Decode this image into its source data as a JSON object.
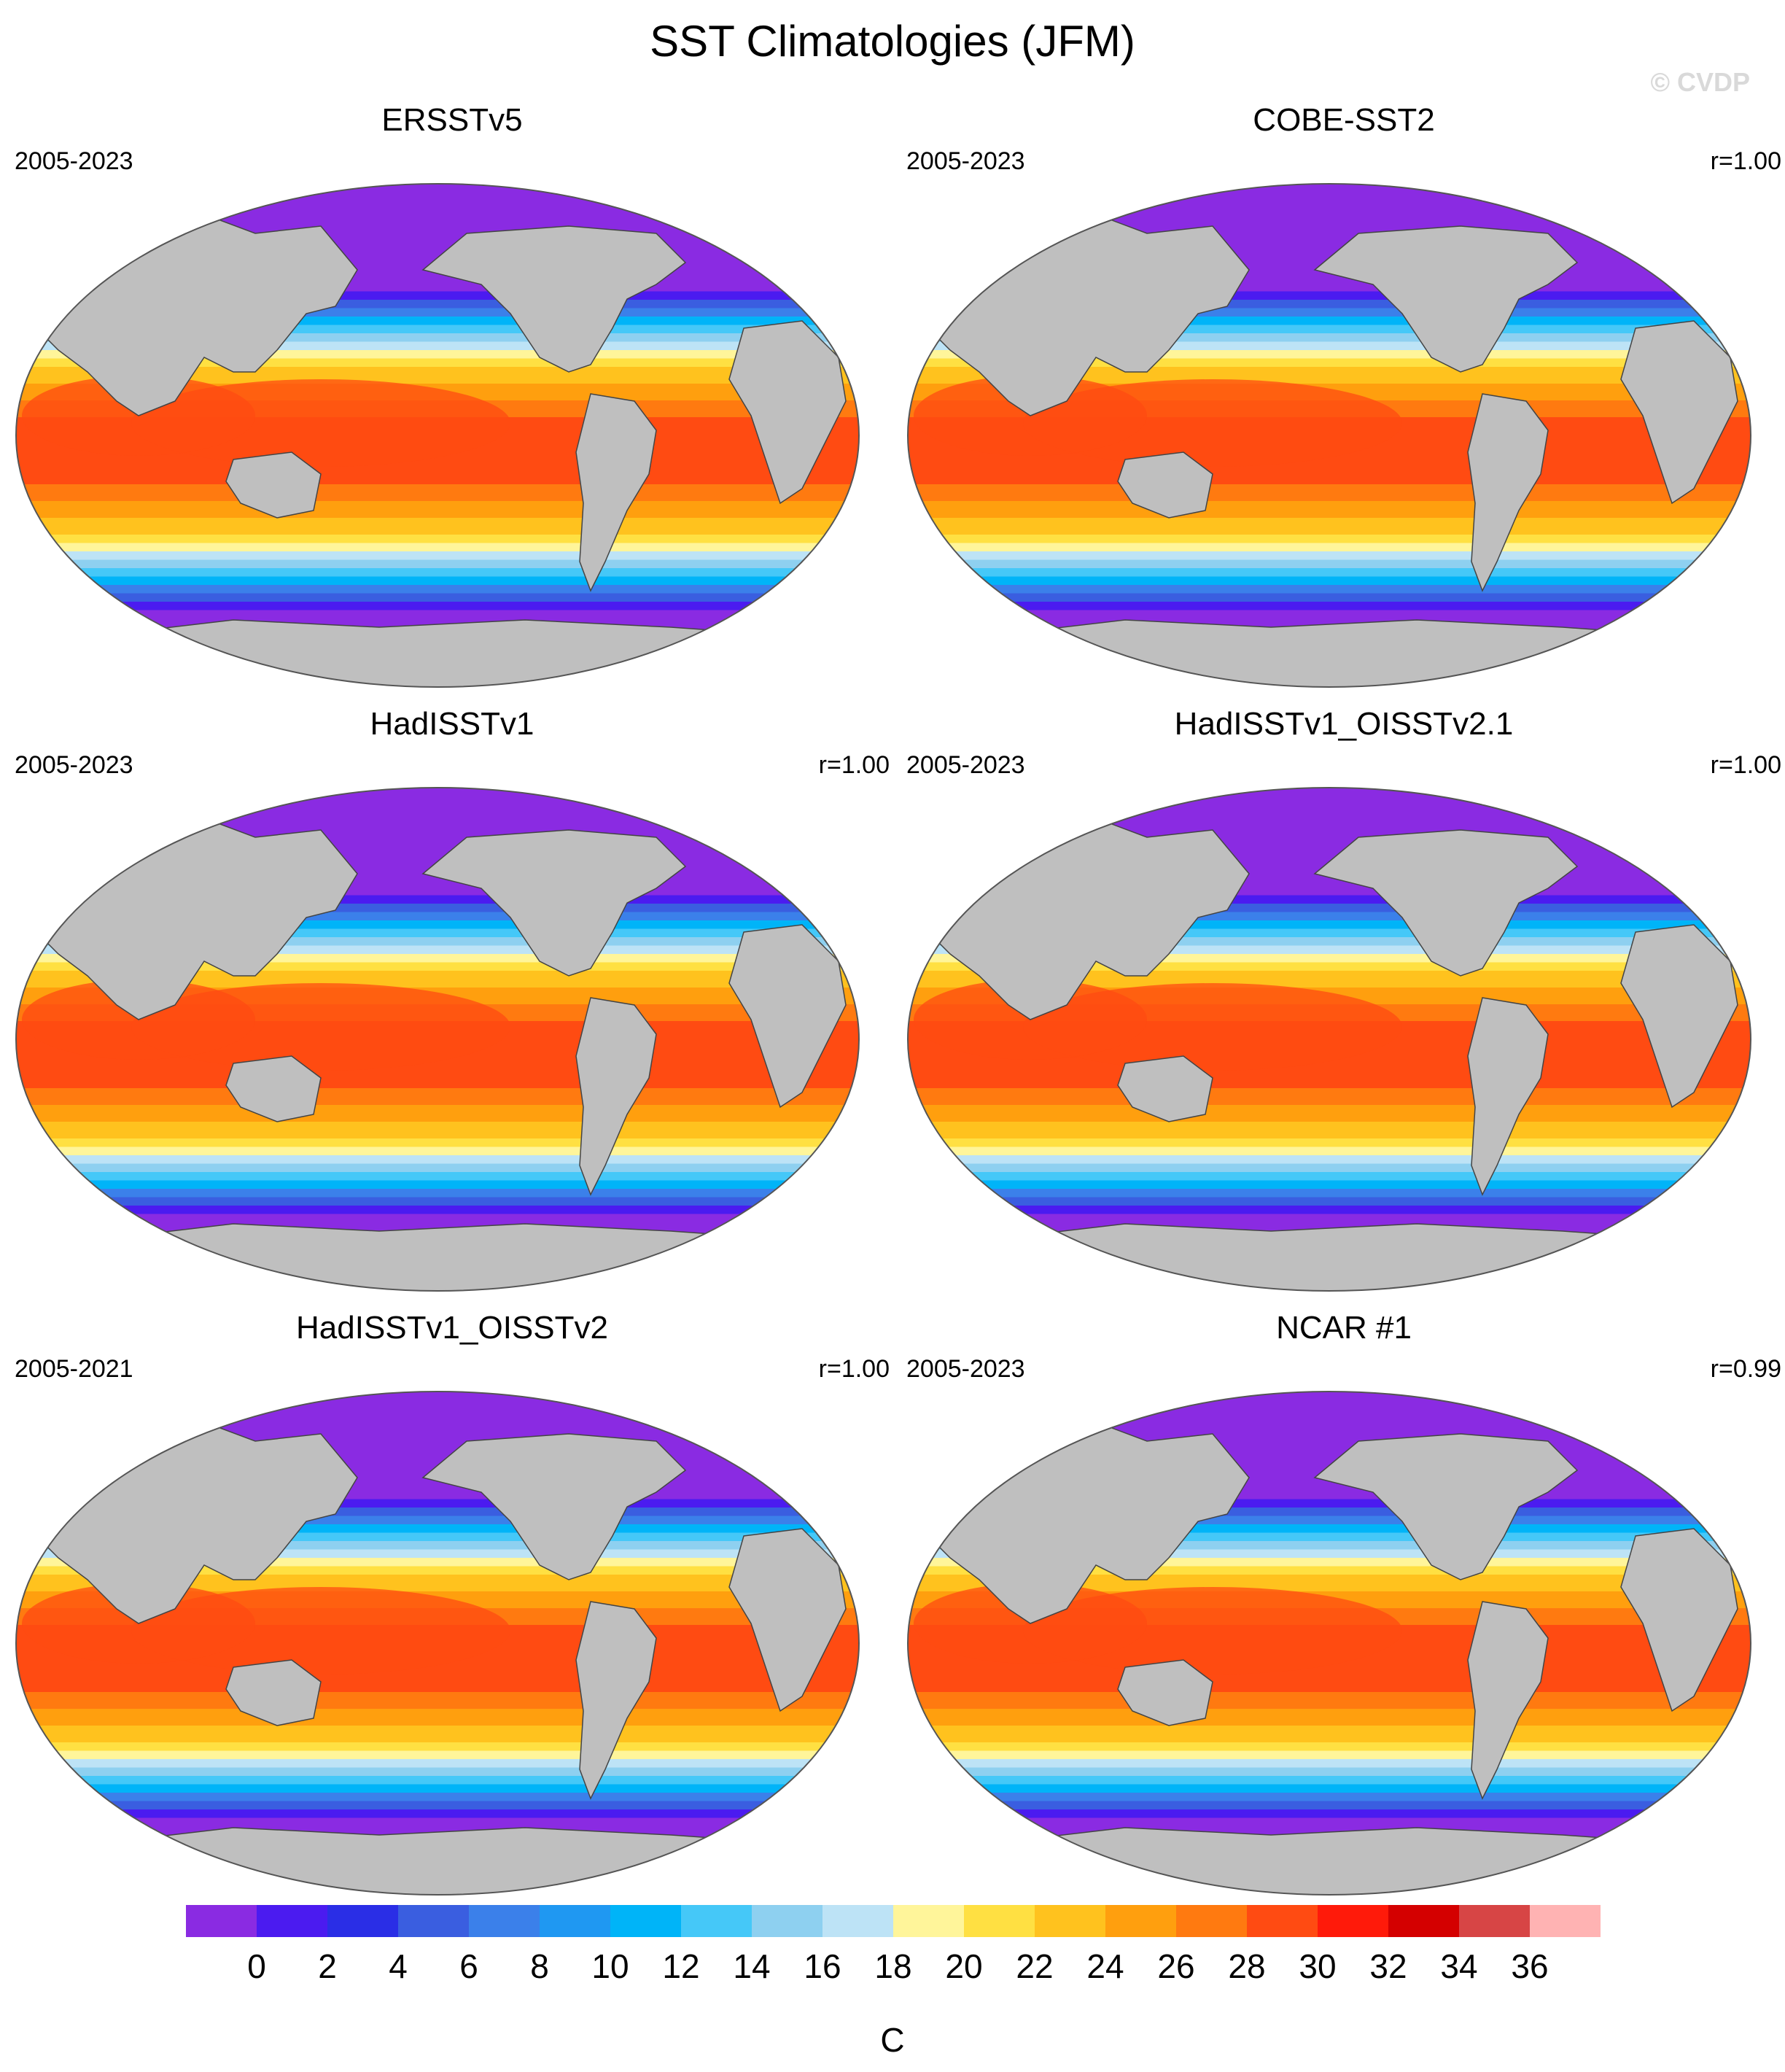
{
  "title": "SST Climatologies (JFM)",
  "watermark": "© CVDP",
  "colors": {
    "land": "#bfbfbf",
    "ice": "#ffffff",
    "coast": "#444444"
  },
  "panels": [
    {
      "name": "ERSSTv5",
      "years": "2005-2023",
      "r": ""
    },
    {
      "name": "COBE-SST2",
      "years": "2005-2023",
      "r": "r=1.00"
    },
    {
      "name": "HadISSTv1",
      "years": "2005-2023",
      "r": "r=1.00"
    },
    {
      "name": "HadISSTv1_OISSTv2.1",
      "years": "2005-2023",
      "r": "r=1.00"
    },
    {
      "name": "HadISSTv1_OISSTv2",
      "years": "2005-2021",
      "r": "r=1.00"
    },
    {
      "name": "NCAR #1",
      "years": "2005-2023",
      "r": "r=0.99"
    }
  ],
  "colorbar": {
    "unit": "C",
    "tick_labels": [
      "0",
      "2",
      "4",
      "6",
      "8",
      "10",
      "12",
      "14",
      "16",
      "18",
      "20",
      "22",
      "24",
      "26",
      "28",
      "30",
      "32",
      "34",
      "36"
    ],
    "colors": [
      "#8a2be2",
      "#4b1bf0",
      "#2a2ee6",
      "#3a5ee0",
      "#3b80ea",
      "#1f98f2",
      "#00b4f8",
      "#45c8f8",
      "#8ed0f0",
      "#bde3f6",
      "#fff59a",
      "#ffe042",
      "#ffc21e",
      "#ff9f0e",
      "#ff7a10",
      "#ff4b12",
      "#ff1a0a",
      "#d40000",
      "#d74545",
      "#ffb3b3"
    ]
  }
}
